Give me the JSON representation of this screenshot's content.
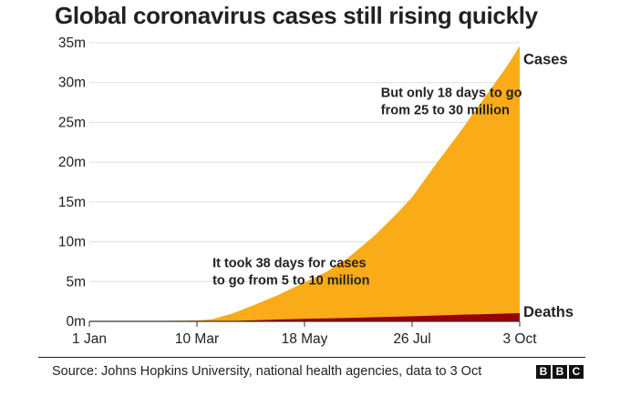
{
  "title": "Global coronavirus cases still rising quickly",
  "source": "Source: Johns Hopkins University, national health agencies, data to 3 Oct",
  "logo": {
    "letters": [
      "B",
      "B",
      "C"
    ]
  },
  "colors": {
    "cases": "#FAAB18",
    "deaths": "#990000",
    "text": "#222222",
    "axis": "#555555"
  },
  "chart_data": {
    "type": "area",
    "title": "Global coronavirus cases still rising quickly",
    "xlabel": "",
    "ylabel": "",
    "x_ticks": [
      "1 Jan",
      "10 Mar",
      "18 May",
      "26 Jul",
      "3 Oct"
    ],
    "xlim": [
      "1 Jan",
      "3 Oct"
    ],
    "y_ticks": [
      "0m",
      "5m",
      "10m",
      "15m",
      "20m",
      "25m",
      "30m",
      "35m"
    ],
    "y_tick_values": [
      0,
      5,
      10,
      15,
      20,
      25,
      30,
      35
    ],
    "ylim": [
      0,
      35
    ],
    "y_unit": "millions",
    "grid": "horizontal",
    "x": [
      "1 Jan",
      "22 Jan",
      "10 Feb",
      "1 Mar",
      "10 Mar",
      "20 Mar",
      "2 Apr",
      "15 Apr",
      "1 May",
      "18 May",
      "1 Jun",
      "15 Jun",
      "1 Jul",
      "15 Jul",
      "26 Jul",
      "10 Aug",
      "25 Aug",
      "10 Sep",
      "25 Sep",
      "3 Oct"
    ],
    "series": [
      {
        "name": "Cases",
        "values": [
          0,
          0,
          0.04,
          0.09,
          0.12,
          0.27,
          1.0,
          2.0,
          3.3,
          4.9,
          6.2,
          8.0,
          10.6,
          13.3,
          15.6,
          19.7,
          23.6,
          28.0,
          32.1,
          34.6
        ]
      },
      {
        "name": "Deaths",
        "values": [
          0,
          0,
          0,
          0,
          0,
          0.01,
          0.05,
          0.13,
          0.23,
          0.32,
          0.38,
          0.44,
          0.51,
          0.58,
          0.64,
          0.73,
          0.82,
          0.9,
          0.98,
          1.03
        ]
      }
    ],
    "annotations": [
      {
        "text": [
          "It took 38 days for cases",
          "to go from 5 to 10 million"
        ],
        "x": "20 Mar",
        "y": 6.8
      },
      {
        "text": [
          "But only 18 days to go",
          "from 25 to 30 million"
        ],
        "x": "6 Jul",
        "y": 28.2
      }
    ]
  }
}
